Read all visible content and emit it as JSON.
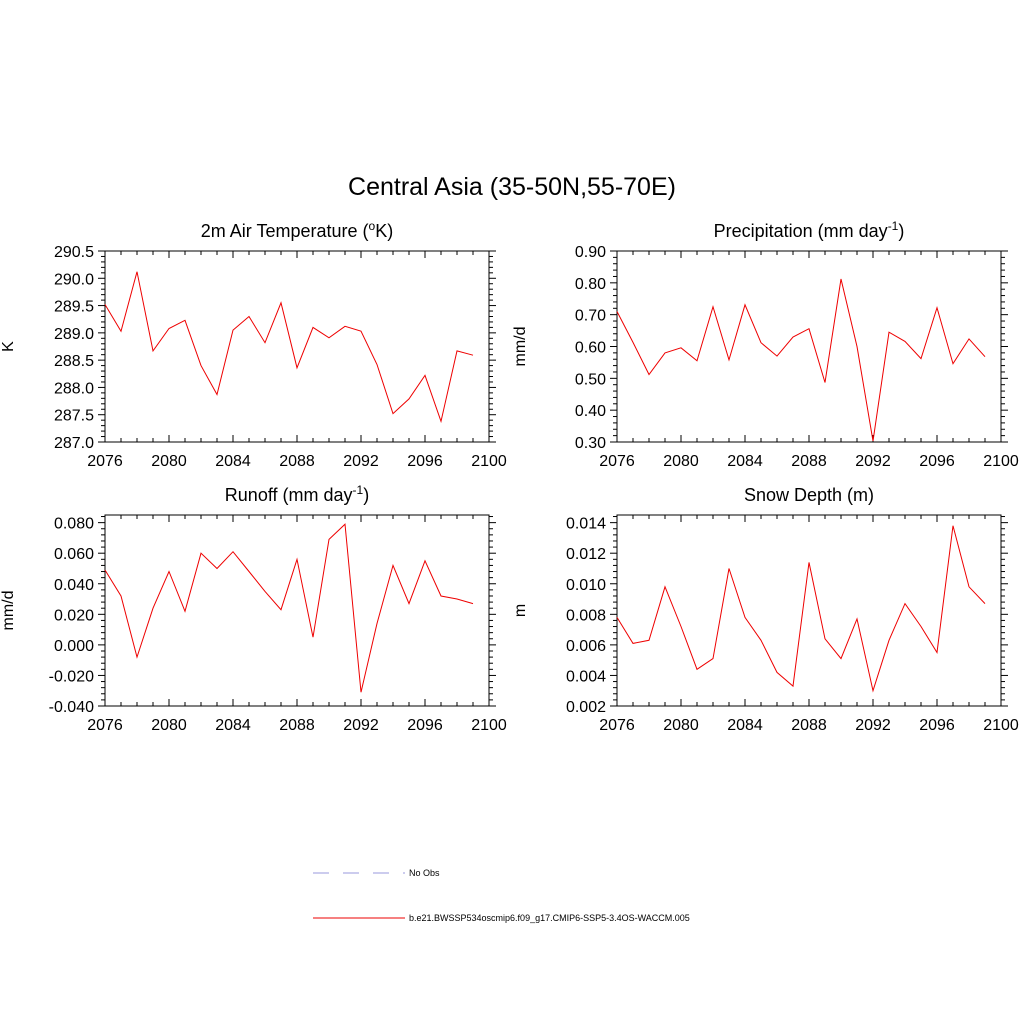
{
  "title": "Central Asia (35-50N,55-70E)",
  "colors": {
    "series": "#ee0000",
    "obs": "#9999dd",
    "axis": "#000000"
  },
  "legend": [
    {
      "label": "No Obs",
      "style": "dashed",
      "color": "#9999dd"
    },
    {
      "label": "b.e21.BWSSP534oscmip6.f09_g17.CMIP6-SSP5-3.4OS-WACCM.005",
      "style": "solid",
      "color": "#ee0000"
    }
  ],
  "chart_data": [
    {
      "type": "line",
      "title": "2m Air Temperature (",
      "title_sup": "o",
      "title_after": "K)",
      "ylabel": "K",
      "xlim": [
        2076,
        2100
      ],
      "ylim": [
        287.0,
        290.5
      ],
      "xticks": [
        "2076",
        "2080",
        "2084",
        "2088",
        "2092",
        "2096",
        "2100"
      ],
      "yticks": [
        "287.0",
        "287.5",
        "288.0",
        "288.5",
        "289.0",
        "289.5",
        "290.0",
        "290.5"
      ],
      "x": [
        2076,
        2077,
        2078,
        2079,
        2080,
        2081,
        2082,
        2083,
        2084,
        2085,
        2086,
        2087,
        2088,
        2089,
        2090,
        2091,
        2092,
        2093,
        2094,
        2095,
        2096,
        2097,
        2098,
        2099
      ],
      "y": [
        289.52,
        289.03,
        290.12,
        288.67,
        289.08,
        289.23,
        288.4,
        287.87,
        289.05,
        289.3,
        288.82,
        289.55,
        288.36,
        289.1,
        288.91,
        289.12,
        289.03,
        288.42,
        287.52,
        287.79,
        288.22,
        287.38,
        288.67,
        288.59
      ]
    },
    {
      "type": "line",
      "title": "Precipitation (mm day",
      "title_sup": "-1",
      "title_after": ")",
      "ylabel": "mm/d",
      "xlim": [
        2076,
        2100
      ],
      "ylim": [
        0.3,
        0.9
      ],
      "xticks": [
        "2076",
        "2080",
        "2084",
        "2088",
        "2092",
        "2096",
        "2100"
      ],
      "yticks": [
        "0.30",
        "0.40",
        "0.50",
        "0.60",
        "0.70",
        "0.80",
        "0.90"
      ],
      "x": [
        2076,
        2077,
        2078,
        2079,
        2080,
        2081,
        2082,
        2083,
        2084,
        2085,
        2086,
        2087,
        2088,
        2089,
        2090,
        2091,
        2092,
        2093,
        2094,
        2095,
        2096,
        2097,
        2098,
        2099
      ],
      "y": [
        0.71,
        0.613,
        0.512,
        0.58,
        0.596,
        0.555,
        0.725,
        0.558,
        0.731,
        0.612,
        0.57,
        0.63,
        0.656,
        0.487,
        0.812,
        0.6,
        0.303,
        0.645,
        0.616,
        0.562,
        0.722,
        0.546,
        0.624,
        0.568
      ]
    },
    {
      "type": "line",
      "title": "Runoff (mm day",
      "title_sup": "-1",
      "title_after": ")",
      "ylabel": "mm/d",
      "xlim": [
        2076,
        2100
      ],
      "ylim": [
        -0.04,
        0.085
      ],
      "xticks": [
        "2076",
        "2080",
        "2084",
        "2088",
        "2092",
        "2096",
        "2100"
      ],
      "yticks": [
        "-0.040",
        "-0.020",
        "0.000",
        "0.020",
        "0.040",
        "0.060",
        "0.080"
      ],
      "ytick_values": [
        -0.04,
        -0.02,
        0.0,
        0.02,
        0.04,
        0.06,
        0.08
      ],
      "x": [
        2076,
        2077,
        2078,
        2079,
        2080,
        2081,
        2082,
        2083,
        2084,
        2085,
        2086,
        2087,
        2088,
        2089,
        2090,
        2091,
        2092,
        2093,
        2094,
        2095,
        2096,
        2097,
        2098,
        2099
      ],
      "y": [
        0.049,
        0.032,
        -0.008,
        0.024,
        0.048,
        0.022,
        0.06,
        0.05,
        0.061,
        0.048,
        0.035,
        0.023,
        0.056,
        0.005,
        0.069,
        0.079,
        -0.031,
        0.014,
        0.052,
        0.027,
        0.055,
        0.032,
        0.03,
        0.027
      ]
    },
    {
      "type": "line",
      "title": "Snow Depth (m)",
      "title_sup": "",
      "title_after": "",
      "ylabel": "m",
      "xlim": [
        2076,
        2100
      ],
      "ylim": [
        0.002,
        0.0145
      ],
      "xticks": [
        "2076",
        "2080",
        "2084",
        "2088",
        "2092",
        "2096",
        "2100"
      ],
      "yticks": [
        "0.002",
        "0.004",
        "0.006",
        "0.008",
        "0.010",
        "0.012",
        "0.014"
      ],
      "ytick_values": [
        0.002,
        0.004,
        0.006,
        0.008,
        0.01,
        0.012,
        0.014
      ],
      "x": [
        2076,
        2077,
        2078,
        2079,
        2080,
        2081,
        2082,
        2083,
        2084,
        2085,
        2086,
        2087,
        2088,
        2089,
        2090,
        2091,
        2092,
        2093,
        2094,
        2095,
        2096,
        2097,
        2098,
        2099
      ],
      "y": [
        0.0078,
        0.0061,
        0.0063,
        0.0098,
        0.0072,
        0.0044,
        0.0051,
        0.011,
        0.0078,
        0.0063,
        0.0042,
        0.0033,
        0.0114,
        0.0064,
        0.0051,
        0.0077,
        0.003,
        0.0063,
        0.0087,
        0.0072,
        0.0055,
        0.0138,
        0.0098,
        0.0087
      ]
    }
  ]
}
